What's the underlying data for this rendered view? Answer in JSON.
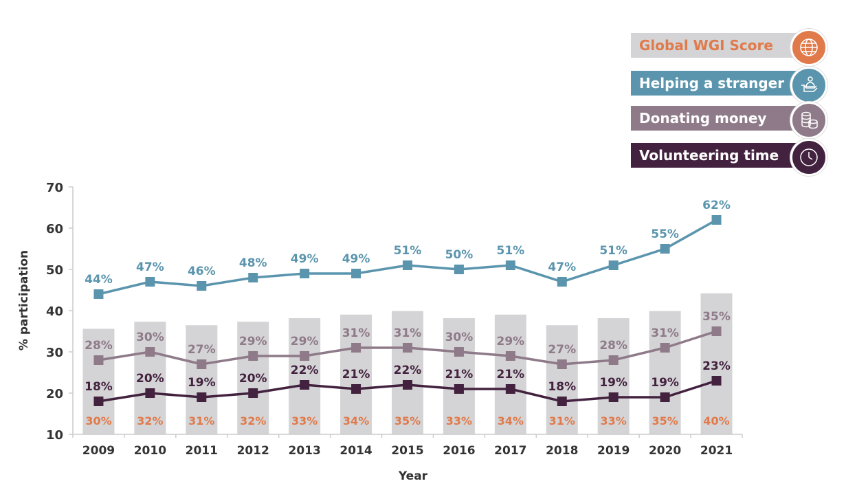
{
  "legend": [
    {
      "label": "Global WGI Score",
      "icon": "globe-icon",
      "bg": "#d4d4d6",
      "fg": "#e07a4a",
      "circle": "#e07a4a"
    },
    {
      "label": "Helping a stranger",
      "icon": "helping-hand-icon",
      "bg": "#5b95ad",
      "fg": "#ffffff",
      "circle": "#5b95ad"
    },
    {
      "label": "Donating money",
      "icon": "coins-icon",
      "bg": "#8e7a88",
      "fg": "#ffffff",
      "circle": "#8e7a88"
    },
    {
      "label": "Volunteering time",
      "icon": "clock-icon",
      "bg": "#43223f",
      "fg": "#ffffff",
      "circle": "#43223f"
    }
  ],
  "chart_data": {
    "type": "line",
    "title": "",
    "xlabel": "Year",
    "ylabel": "% participation",
    "ylim": [
      10,
      70
    ],
    "yticks": [
      "10",
      "20",
      "30",
      "40",
      "50",
      "60",
      "70"
    ],
    "categories": [
      "2009",
      "2010",
      "2011",
      "2012",
      "2013",
      "2014",
      "2015",
      "2016",
      "2017",
      "2018",
      "2019",
      "2020",
      "2021"
    ],
    "bars": {
      "name": "Global WGI Score",
      "color": "#d4d4d6",
      "label_color": "#e07a4a",
      "values": [
        30,
        32,
        31,
        32,
        33,
        34,
        35,
        33,
        34,
        31,
        33,
        35,
        40
      ]
    },
    "series": [
      {
        "name": "Helping a stranger",
        "color": "#5b95ad",
        "values": [
          44,
          47,
          46,
          48,
          49,
          49,
          51,
          50,
          51,
          47,
          51,
          55,
          62
        ]
      },
      {
        "name": "Donating money",
        "color": "#8e7a88",
        "values": [
          28,
          30,
          27,
          29,
          29,
          31,
          31,
          30,
          29,
          27,
          28,
          31,
          35
        ]
      },
      {
        "name": "Volunteering time",
        "color": "#43223f",
        "values": [
          18,
          20,
          19,
          20,
          22,
          21,
          22,
          21,
          21,
          18,
          19,
          19,
          23
        ]
      }
    ],
    "grid": false,
    "legend_position": "top-right"
  }
}
